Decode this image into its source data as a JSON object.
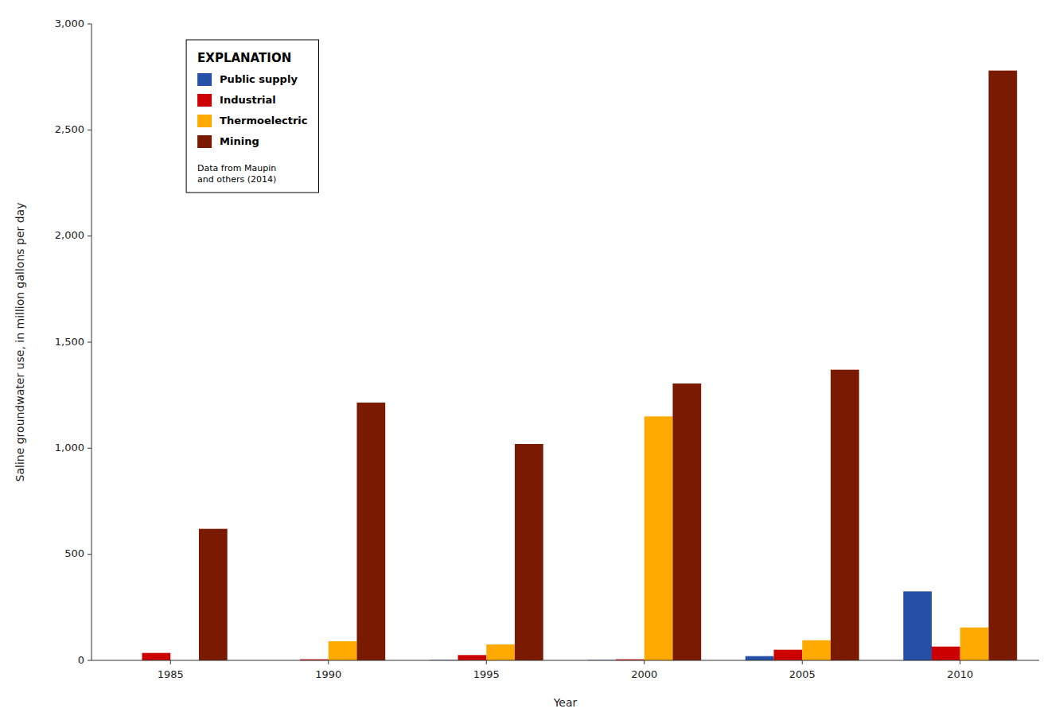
{
  "chart_data": {
    "type": "bar",
    "categories": [
      "1985",
      "1990",
      "1995",
      "2000",
      "2005",
      "2010"
    ],
    "series": [
      {
        "name": "Public supply",
        "color": "#2450a8",
        "values": [
          0,
          0,
          2,
          2,
          20,
          325
        ]
      },
      {
        "name": "Industrial",
        "color": "#cc0000",
        "values": [
          35,
          5,
          25,
          5,
          50,
          65
        ]
      },
      {
        "name": "Thermoelectric",
        "color": "#ffaa00",
        "values": [
          0,
          90,
          75,
          1150,
          95,
          155
        ]
      },
      {
        "name": "Mining",
        "color": "#7a1a00",
        "values": [
          620,
          1215,
          1020,
          1305,
          1370,
          2780
        ]
      }
    ],
    "x_label": "Year",
    "y_label": "Saline groundwater use, in million gallons per day",
    "ylim": [
      0,
      3000
    ],
    "yticks": [
      0,
      500,
      {
        "value": 1000,
        "label": "1,000"
      },
      {
        "value": 1500,
        "label": "1,500"
      },
      {
        "value": 2000,
        "label": "2,000"
      },
      {
        "value": 2500,
        "label": "2,500"
      },
      {
        "value": 3000,
        "label": "3,000"
      }
    ],
    "grid": false,
    "legend": "upper left",
    "legend_title": "EXPLANATION",
    "annotations": [
      {
        "text": "Data from Maupin\nand others (2014)"
      }
    ]
  }
}
